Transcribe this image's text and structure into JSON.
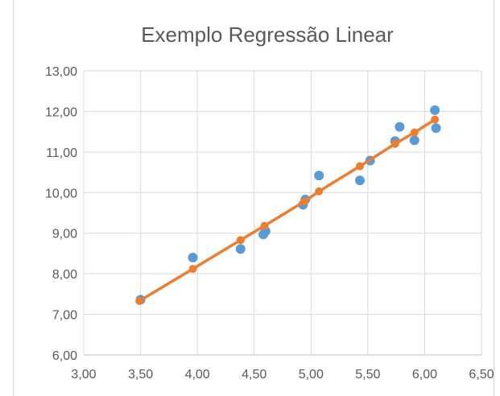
{
  "chart_data": {
    "type": "scatter",
    "title": "Exemplo Regressão Linear",
    "xlabel": "",
    "ylabel": "",
    "xlim": [
      3.0,
      6.5
    ],
    "ylim": [
      6.0,
      13.0
    ],
    "x_ticks": [
      "3,00",
      "3,50",
      "4,00",
      "4,50",
      "5,00",
      "5,50",
      "6,00",
      "6,50"
    ],
    "y_ticks": [
      "6,00",
      "7,00",
      "8,00",
      "9,00",
      "10,00",
      "11,00",
      "12,00",
      "13,00"
    ],
    "grid": true,
    "legend": "none",
    "series": [
      {
        "color": "#5b9bd5",
        "mode": "markers",
        "x": [
          3.5,
          3.96,
          4.38,
          4.58,
          4.6,
          4.93,
          4.95,
          5.07,
          5.43,
          5.52,
          5.74,
          5.78,
          5.91,
          6.09,
          6.1
        ],
        "y": [
          7.36,
          8.4,
          8.61,
          8.97,
          9.05,
          9.7,
          9.83,
          10.42,
          10.3,
          10.79,
          11.27,
          11.62,
          11.29,
          12.03,
          11.59
        ]
      },
      {
        "color": "#ed7d31",
        "mode": "lines+markers",
        "x": [
          3.49,
          3.96,
          4.38,
          4.59,
          4.94,
          5.07,
          5.43,
          5.74,
          5.91,
          6.09
        ],
        "y": [
          7.33,
          8.12,
          8.83,
          9.18,
          9.78,
          10.03,
          10.65,
          11.2,
          11.48,
          11.8
        ]
      }
    ]
  }
}
